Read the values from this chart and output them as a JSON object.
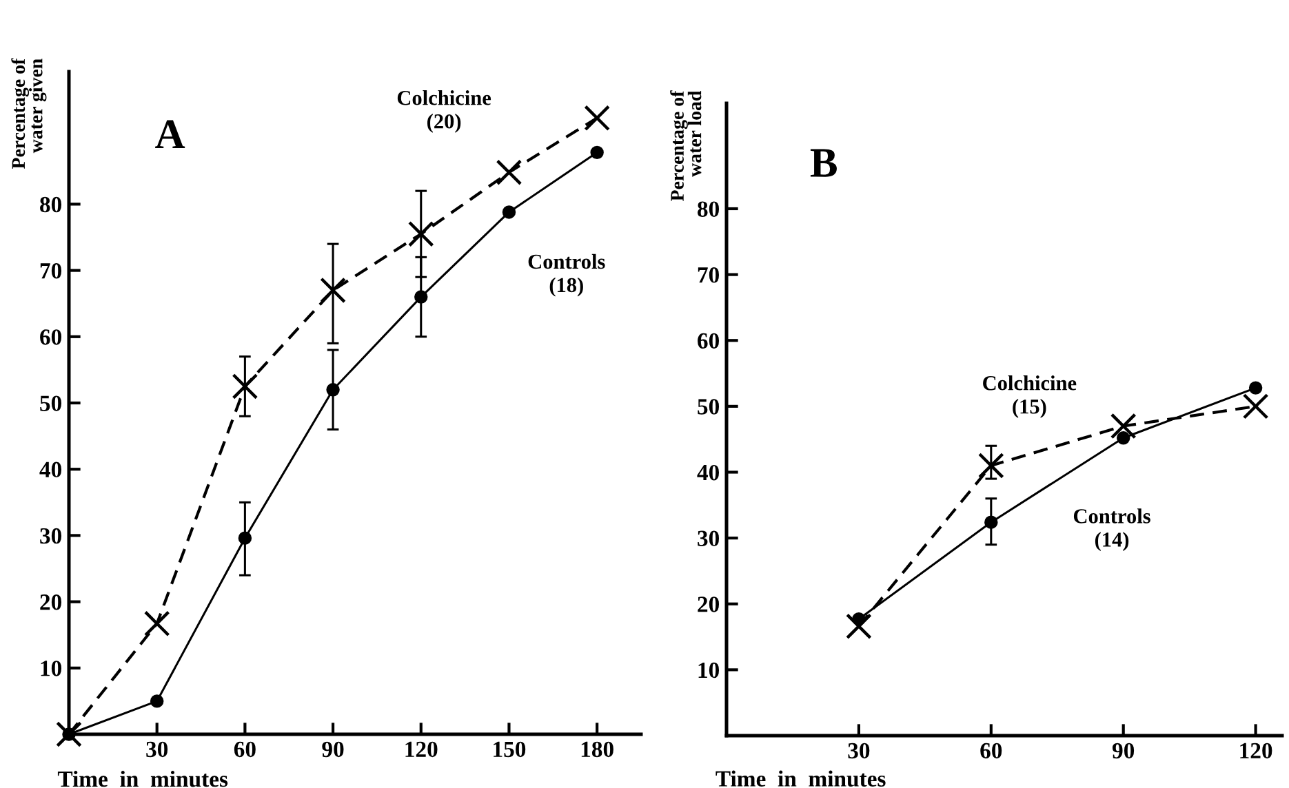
{
  "chart_data": [
    {
      "type": "line",
      "title": "A",
      "xlabel": "Time  in  minutes",
      "ylabel": "Percentage of\nwater given",
      "xlim": [
        0,
        195
      ],
      "ylim": [
        0,
        100
      ],
      "xticks": [
        30,
        60,
        90,
        120,
        150,
        180
      ],
      "yticks": [
        10,
        20,
        30,
        40,
        50,
        60,
        70,
        80
      ],
      "grid": false,
      "legend": false,
      "series": [
        {
          "name": "Colchicine\n(20)",
          "color": "#000000",
          "marker": "cross",
          "line_style": "dashed",
          "x": [
            0,
            30,
            60,
            90,
            120,
            150,
            180
          ],
          "values": [
            0,
            16.7,
            52.5,
            67,
            75.5,
            84.8,
            93
          ],
          "errors": [
            null,
            null,
            [
              48,
              57
            ],
            [
              59,
              74
            ],
            [
              69,
              82
            ],
            null,
            null
          ]
        },
        {
          "name": "Controls\n(18)",
          "color": "#000000",
          "marker": "circle",
          "line_style": "solid",
          "x": [
            0,
            30,
            60,
            90,
            120,
            150,
            180
          ],
          "values": [
            0,
            5,
            29.6,
            52,
            66,
            78.8,
            87.8
          ],
          "errors": [
            null,
            null,
            [
              24,
              35
            ],
            [
              46,
              58
            ],
            [
              60,
              72
            ],
            null,
            null
          ]
        }
      ]
    },
    {
      "type": "line",
      "title": "B",
      "xlabel": "Time  in  minutes",
      "ylabel": "Percentage of\nwater load",
      "xlim": [
        0,
        126
      ],
      "ylim": [
        0,
        96
      ],
      "xticks": [
        30,
        60,
        90,
        120
      ],
      "yticks": [
        10,
        20,
        30,
        40,
        50,
        60,
        70,
        80
      ],
      "grid": false,
      "legend": false,
      "series": [
        {
          "name": "Colchicine\n(15)",
          "color": "#000000",
          "marker": "cross",
          "line_style": "dashed",
          "x": [
            30,
            60,
            90,
            120
          ],
          "values": [
            16.6,
            41,
            47,
            50
          ],
          "errors": [
            null,
            [
              39,
              44
            ],
            null,
            null
          ]
        },
        {
          "name": "Controls\n(14)",
          "color": "#000000",
          "marker": "circle",
          "line_style": "solid",
          "x": [
            30,
            60,
            90,
            120
          ],
          "values": [
            17.7,
            32.4,
            45.2,
            52.8
          ],
          "errors": [
            null,
            [
              29,
              36
            ],
            null,
            null
          ]
        }
      ]
    }
  ]
}
